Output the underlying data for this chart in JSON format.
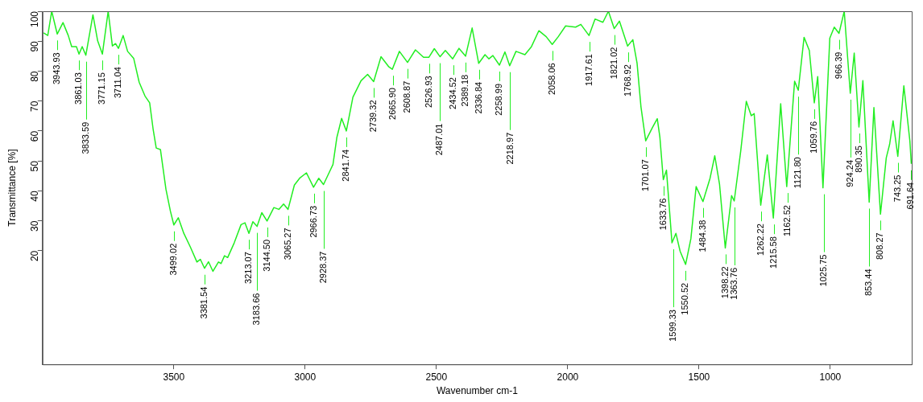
{
  "chart_data": {
    "type": "line",
    "xlabel": "Wavenumber cm-1",
    "ylabel": "Transmittance [%]",
    "xlim": [
      4000,
      690
    ],
    "xticks": [
      3500,
      3000,
      2500,
      2000,
      1500,
      1000
    ],
    "ylim": [
      -18,
      100
    ],
    "yticks": [
      20,
      30,
      40,
      50,
      60,
      70,
      80,
      90,
      100
    ],
    "grid": false,
    "legend": false,
    "marker": "none",
    "line_style": "solid",
    "series": [
      {
        "color": "#22ee22",
        "x": [
          3996,
          3980,
          3965,
          3944,
          3922,
          3902,
          3889,
          3871,
          3861,
          3849,
          3835,
          3808,
          3790,
          3772,
          3750,
          3734,
          3722,
          3711,
          3693,
          3676,
          3653,
          3632,
          3610,
          3592,
          3579,
          3567,
          3551,
          3530,
          3513,
          3500,
          3483,
          3462,
          3437,
          3412,
          3399,
          3383,
          3368,
          3351,
          3330,
          3320,
          3307,
          3295,
          3270,
          3244,
          3229,
          3214,
          3199,
          3183,
          3165,
          3145,
          3119,
          3100,
          3082,
          3065,
          3041,
          3021,
          2995,
          2968,
          2948,
          2930,
          2909,
          2894,
          2879,
          2861,
          2843,
          2818,
          2787,
          2762,
          2739,
          2711,
          2681,
          2668,
          2641,
          2610,
          2580,
          2549,
          2529,
          2508,
          2486,
          2466,
          2438,
          2414,
          2389,
          2364,
          2339,
          2315,
          2300,
          2285,
          2260,
          2239,
          2221,
          2197,
          2163,
          2138,
          2110,
          2082,
          2059,
          2036,
          2008,
          1970,
          1950,
          1919,
          1896,
          1866,
          1845,
          1823,
          1803,
          1772,
          1752,
          1736,
          1721,
          1703,
          1677,
          1659,
          1649,
          1636,
          1624,
          1603,
          1588,
          1572,
          1551,
          1531,
          1511,
          1485,
          1458,
          1440,
          1422,
          1400,
          1376,
          1366,
          1341,
          1320,
          1301,
          1290,
          1265,
          1240,
          1217,
          1189,
          1166,
          1136,
          1122,
          1100,
          1080,
          1061,
          1048,
          1028,
          1002,
          985,
          967,
          947,
          924,
          909,
          891,
          876,
          852,
          834,
          809,
          787,
          774,
          761,
          743,
          720,
          697,
          691.64
        ],
        "values": [
          92.8,
          91.9,
          100,
          92.4,
          96.2,
          91.9,
          88.2,
          88.2,
          85.7,
          88.2,
          85.3,
          98.8,
          90.1,
          85.7,
          100,
          88.4,
          89.2,
          87.6,
          91.9,
          86.6,
          84.3,
          76.3,
          71.7,
          69.4,
          60.7,
          54.3,
          53.8,
          40.5,
          33.2,
          28.6,
          31.0,
          25.8,
          21.2,
          16.2,
          17.1,
          14.1,
          16.3,
          13.1,
          16.2,
          15.7,
          18.3,
          17.7,
          22.6,
          28.7,
          29.3,
          25.8,
          29.7,
          28.1,
          32.7,
          29.9,
          34.4,
          33.8,
          35.6,
          33.8,
          41.9,
          44.2,
          46.0,
          41.2,
          44.2,
          42.1,
          46.0,
          48.8,
          57.9,
          64.2,
          60.0,
          71.3,
          76.8,
          78.9,
          76.5,
          84.8,
          81.4,
          80.6,
          86.6,
          82.9,
          87.1,
          84.6,
          84.6,
          87.5,
          84.8,
          86.9,
          84.1,
          87.6,
          85.0,
          94.4,
          82.6,
          85.5,
          84.1,
          85.2,
          82.0,
          86.4,
          81.8,
          86.6,
          85.5,
          88.2,
          93.5,
          91.5,
          88.9,
          91.5,
          95.1,
          94.7,
          95.6,
          91.9,
          97.4,
          96.3,
          100,
          94.2,
          96.7,
          88.4,
          90.5,
          82.7,
          68.0,
          56.7,
          61.2,
          64.1,
          57.9,
          43.7,
          46.9,
          22.6,
          25.8,
          19.8,
          15.4,
          24.0,
          41.4,
          36.4,
          44.2,
          51.7,
          42.3,
          20.9,
          38.4,
          36.6,
          53.4,
          69.9,
          65.1,
          65.8,
          35.2,
          52.0,
          30.9,
          69.1,
          41.4,
          76.6,
          73.6,
          91.3,
          86.9,
          69.4,
          78.2,
          41.0,
          91.0,
          94.7,
          92.6,
          100,
          72.6,
          86.0,
          61.3,
          76.8,
          36.2,
          67.8,
          32.2,
          51.0,
          55.6,
          63.4,
          51.5,
          75.1,
          56.6,
          49
        ]
      }
    ],
    "annotations": [
      {
        "text": "3943.93",
        "x": 3943.93,
        "y": 92.4
      },
      {
        "text": "3861.03",
        "x": 3861.03,
        "y": 85.7
      },
      {
        "text": "3833.59",
        "x": 3833.59,
        "y": 85.3
      },
      {
        "text": "3771.15",
        "x": 3771.15,
        "y": 85.7
      },
      {
        "text": "3711.04",
        "x": 3711.04,
        "y": 87.6
      },
      {
        "text": "3499.02",
        "x": 3499.02,
        "y": 28.6
      },
      {
        "text": "3381.54",
        "x": 3381.54,
        "y": 14.1
      },
      {
        "text": "3213.07",
        "x": 3213.07,
        "y": 25.8
      },
      {
        "text": "3183.66",
        "x": 3183.66,
        "y": 28.1
      },
      {
        "text": "3144.50",
        "x": 3144.5,
        "y": 29.9
      },
      {
        "text": "3065.27",
        "x": 3065.27,
        "y": 33.8
      },
      {
        "text": "2966.73",
        "x": 2966.73,
        "y": 41.2
      },
      {
        "text": "2928.37",
        "x": 2928.37,
        "y": 42.1
      },
      {
        "text": "2841.74",
        "x": 2841.74,
        "y": 60.0
      },
      {
        "text": "2739.32",
        "x": 2739.32,
        "y": 76.5
      },
      {
        "text": "2665.90",
        "x": 2665.9,
        "y": 80.6
      },
      {
        "text": "2608.87",
        "x": 2608.87,
        "y": 82.9
      },
      {
        "text": "2526.93",
        "x": 2526.93,
        "y": 84.6
      },
      {
        "text": "2487.01",
        "x": 2487.01,
        "y": 84.8
      },
      {
        "text": "2434.52",
        "x": 2434.52,
        "y": 84.1
      },
      {
        "text": "2389.18",
        "x": 2389.18,
        "y": 85.0
      },
      {
        "text": "2336.84",
        "x": 2336.84,
        "y": 82.6
      },
      {
        "text": "2258.99",
        "x": 2258.99,
        "y": 82.0
      },
      {
        "text": "2218.97",
        "x": 2218.97,
        "y": 81.8
      },
      {
        "text": "2058.06",
        "x": 2058.06,
        "y": 88.9
      },
      {
        "text": "1917.61",
        "x": 1917.61,
        "y": 91.9
      },
      {
        "text": "1821.02",
        "x": 1821.02,
        "y": 94.2
      },
      {
        "text": "1768.92",
        "x": 1768.92,
        "y": 88.4
      },
      {
        "text": "1701.07",
        "x": 1701.07,
        "y": 56.7
      },
      {
        "text": "1633.76",
        "x": 1633.76,
        "y": 43.7
      },
      {
        "text": "1599.33",
        "x": 1599.33,
        "y": 22.6
      },
      {
        "text": "1550.52",
        "x": 1550.52,
        "y": 15.4
      },
      {
        "text": "1484.38",
        "x": 1484.38,
        "y": 36.4
      },
      {
        "text": "1398.22",
        "x": 1398.22,
        "y": 20.9
      },
      {
        "text": "1363.76",
        "x": 1363.76,
        "y": 36.6
      },
      {
        "text": "1262.22",
        "x": 1262.22,
        "y": 35.2
      },
      {
        "text": "1215.58",
        "x": 1215.58,
        "y": 30.9
      },
      {
        "text": "1162.52",
        "x": 1162.52,
        "y": 41.4
      },
      {
        "text": "1121.80",
        "x": 1121.8,
        "y": 73.6
      },
      {
        "text": "1059.76",
        "x": 1059.76,
        "y": 69.4
      },
      {
        "text": "1025.75",
        "x": 1025.75,
        "y": 41.0
      },
      {
        "text": "966.39",
        "x": 966.39,
        "y": 92.6
      },
      {
        "text": "924.24",
        "x": 924.24,
        "y": 72.6
      },
      {
        "text": "890.35",
        "x": 890.35,
        "y": 61.3
      },
      {
        "text": "853.44",
        "x": 853.44,
        "y": 36.2
      },
      {
        "text": "808.27",
        "x": 808.27,
        "y": 32.2
      },
      {
        "text": "743.25",
        "x": 743.25,
        "y": 51.5
      },
      {
        "text": "691.64",
        "x": 691.64,
        "y": 49
      }
    ]
  }
}
